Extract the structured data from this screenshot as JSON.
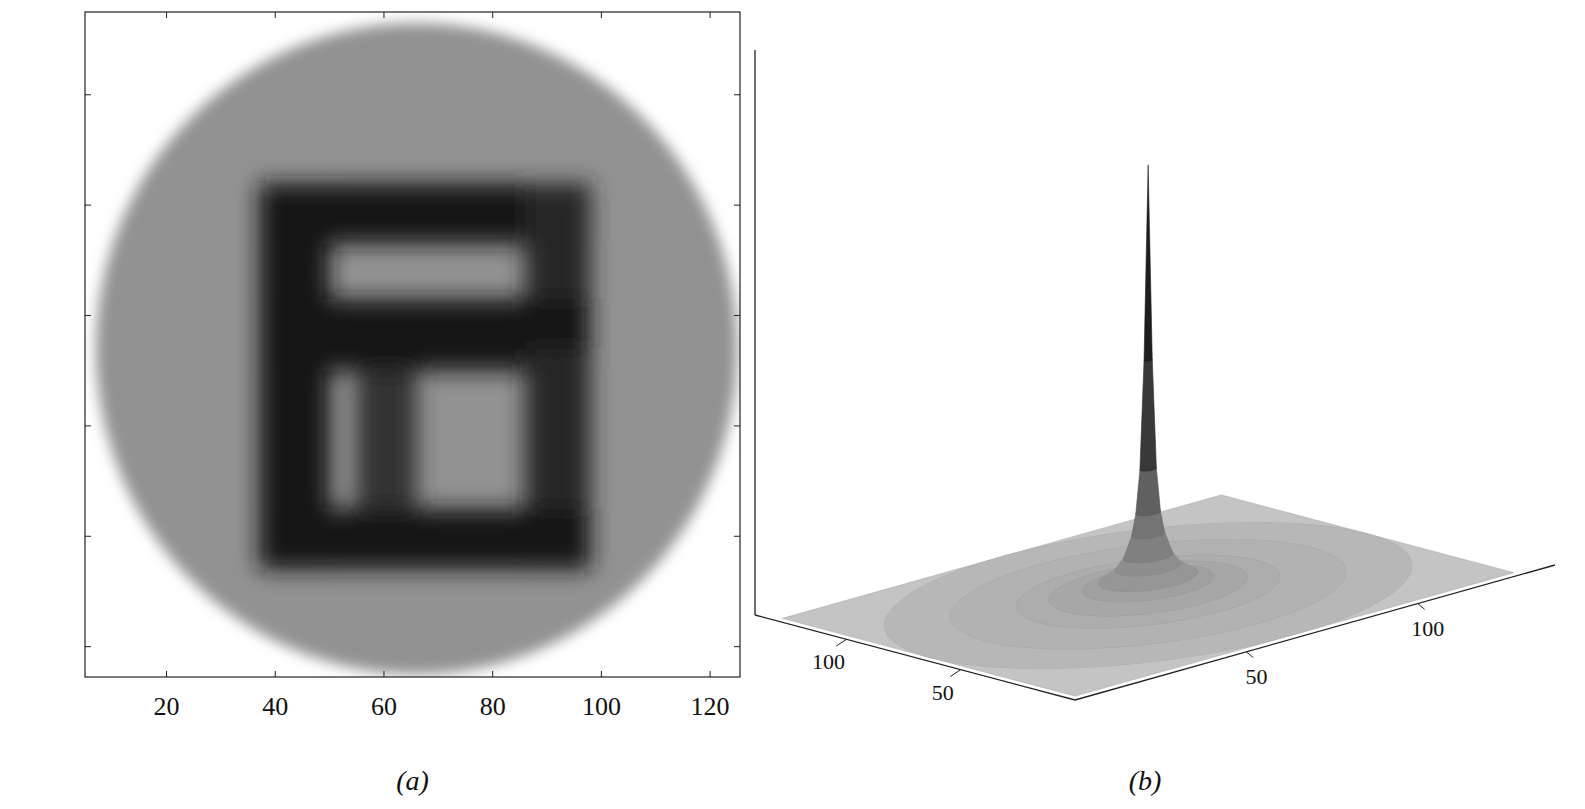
{
  "chart_data": [
    {
      "type": "image",
      "label": "(a)",
      "color": "gray",
      "xlim": [
        5,
        125.5
      ],
      "ylim": [
        5,
        125.5
      ],
      "xticks": [
        20,
        40,
        60,
        80,
        100,
        120
      ],
      "yticks": [
        20,
        40,
        60,
        80,
        100,
        120
      ],
      "tick_labels": "x",
      "disc": {
        "cx": 66,
        "cy": 66,
        "r": 59,
        "value": 0.45
      },
      "blocks": [
        {
          "x": [
            37,
            98
          ],
          "y": [
            36,
            47
          ],
          "value": 0.95
        },
        {
          "x": [
            37,
            50
          ],
          "y": [
            36,
            106
          ],
          "value": 0.95
        },
        {
          "x": [
            86,
            98
          ],
          "y": [
            36,
            66
          ],
          "value": 0.9
        },
        {
          "x": [
            37,
            98
          ],
          "y": [
            57,
            70
          ],
          "value": 0.95
        },
        {
          "x": [
            86,
            98
          ],
          "y": [
            66,
            106
          ],
          "value": 0.9
        },
        {
          "x": [
            37,
            98
          ],
          "y": [
            95,
            106
          ],
          "value": 0.95
        },
        {
          "x": [
            55,
            66
          ],
          "y": [
            70,
            95
          ],
          "value": 0.85
        }
      ]
    },
    {
      "type": "surface",
      "label": "(b)",
      "color": "gray",
      "xlim": [
        0,
        140
      ],
      "ylim": [
        0,
        140
      ],
      "zlim": [
        0,
        1.3
      ],
      "xticks": [
        50,
        100
      ],
      "yticks": [
        50,
        100
      ],
      "extent": [
        0,
        128
      ],
      "center": [
        64,
        64
      ],
      "r": [
        0,
        1,
        2,
        3,
        4,
        6,
        8,
        12,
        16,
        24,
        32,
        48,
        64
      ],
      "values": [
        1,
        0.55,
        0.3,
        0.2,
        0.15,
        0.1,
        0.075,
        0.05,
        0.037,
        0.025,
        0.018,
        0.012,
        0.009
      ]
    }
  ]
}
